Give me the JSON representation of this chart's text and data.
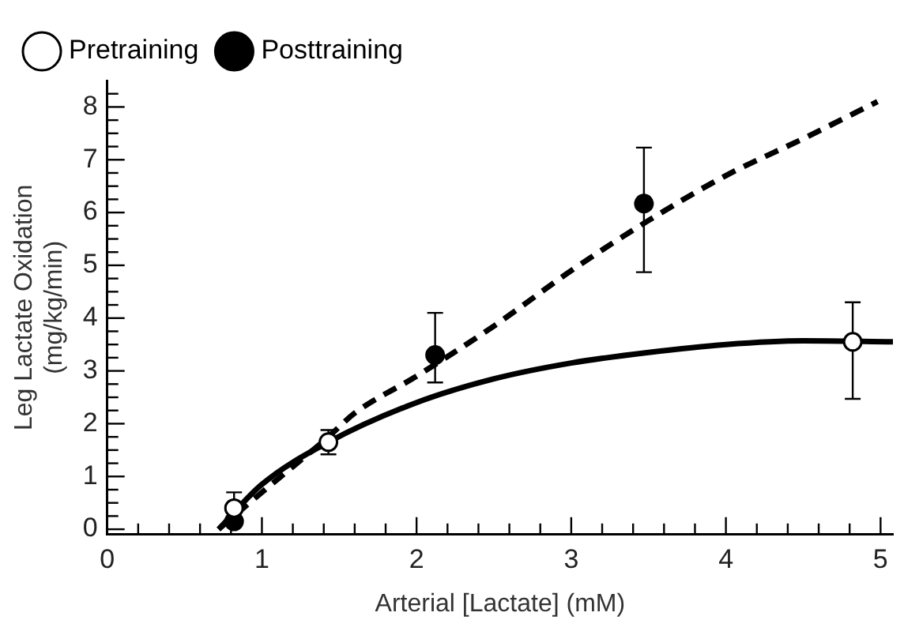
{
  "chart_data": {
    "type": "scatter",
    "xlabel": "Arterial [Lactate] (mM)",
    "ylabel": "Leg Lactate Oxidation\n(mg/kg/min)",
    "xlim": [
      0,
      5.08
    ],
    "ylim": [
      -0.1,
      8.5
    ],
    "xticks": [
      0,
      {
        "value": 0.2,
        "label": null
      },
      {
        "value": 0.4,
        "label": null
      },
      {
        "value": 0.6,
        "label": null
      },
      {
        "value": 0.8,
        "label": null
      },
      1,
      {
        "value": 1.2,
        "label": null
      },
      {
        "value": 1.4,
        "label": null
      },
      {
        "value": 1.6,
        "label": null
      },
      {
        "value": 1.8,
        "label": null
      },
      2,
      {
        "value": 2.2,
        "label": null
      },
      {
        "value": 2.4,
        "label": null
      },
      {
        "value": 2.6,
        "label": null
      },
      {
        "value": 2.8,
        "label": null
      },
      3,
      {
        "value": 3.2,
        "label": null
      },
      {
        "value": 3.4,
        "label": null
      },
      {
        "value": 3.6,
        "label": null
      },
      {
        "value": 3.8,
        "label": null
      },
      4,
      {
        "value": 4.2,
        "label": null
      },
      {
        "value": 4.4,
        "label": null
      },
      {
        "value": 4.6,
        "label": null
      },
      {
        "value": 4.8,
        "label": null
      },
      5
    ],
    "yticks": [
      0,
      {
        "value": 0.25,
        "label": null
      },
      {
        "value": 0.5,
        "label": null
      },
      {
        "value": 0.75,
        "label": null
      },
      1,
      {
        "value": 1.25,
        "label": null
      },
      {
        "value": 1.5,
        "label": null
      },
      {
        "value": 1.75,
        "label": null
      },
      2,
      {
        "value": 2.25,
        "label": null
      },
      {
        "value": 2.5,
        "label": null
      },
      {
        "value": 2.75,
        "label": null
      },
      3,
      {
        "value": 3.25,
        "label": null
      },
      {
        "value": 3.5,
        "label": null
      },
      {
        "value": 3.75,
        "label": null
      },
      4,
      {
        "value": 4.25,
        "label": null
      },
      {
        "value": 4.5,
        "label": null
      },
      {
        "value": 4.75,
        "label": null
      },
      5,
      {
        "value": 5.25,
        "label": null
      },
      {
        "value": 5.5,
        "label": null
      },
      {
        "value": 5.75,
        "label": null
      },
      6,
      {
        "value": 6.25,
        "label": null
      },
      {
        "value": 6.5,
        "label": null
      },
      {
        "value": 6.75,
        "label": null
      },
      7,
      {
        "value": 7.25,
        "label": null
      },
      {
        "value": 7.5,
        "label": null
      },
      {
        "value": 7.75,
        "label": null
      },
      8,
      {
        "value": 8.25,
        "label": null
      }
    ],
    "grid": false,
    "legend": "top left",
    "series": [
      {
        "name": "Pretraining",
        "marker": "circle",
        "color": "#ffffff",
        "x": [
          0.82,
          1.43,
          4.82
        ],
        "values": [
          0.4,
          1.65,
          3.55
        ],
        "errors": [
          0.3,
          [
            1.42,
            1.88
          ],
          [
            2.47,
            4.3
          ]
        ]
      },
      {
        "name": "Posttraining",
        "marker": "circle",
        "color": "#000000",
        "x": [
          0.82,
          2.12,
          3.47
        ],
        "values": [
          0.15,
          3.3,
          6.17
        ],
        "errors": [
          null,
          [
            2.78,
            4.1
          ],
          [
            4.87,
            7.23
          ]
        ]
      },
      {
        "type": "line",
        "marker": "none",
        "line_style": "solid",
        "color": "#000000",
        "x": [
          0.72,
          1.0,
          1.43,
          2.0,
          2.5,
          3.0,
          3.5,
          4.0,
          4.5,
          5.08
        ],
        "values": [
          0,
          0.85,
          1.65,
          2.4,
          2.85,
          3.15,
          3.35,
          3.5,
          3.57,
          3.55
        ]
      },
      {
        "type": "line",
        "marker": "none",
        "line_style": "dashed",
        "color": "#000000",
        "x": [
          0.72,
          1.0,
          1.43,
          1.6,
          2.0,
          2.5,
          3.0,
          3.5,
          4.0,
          4.5,
          4.98
        ],
        "values": [
          0,
          0.7,
          1.75,
          2.2,
          2.9,
          3.85,
          4.9,
          5.85,
          6.7,
          7.4,
          8.1
        ]
      }
    ]
  }
}
